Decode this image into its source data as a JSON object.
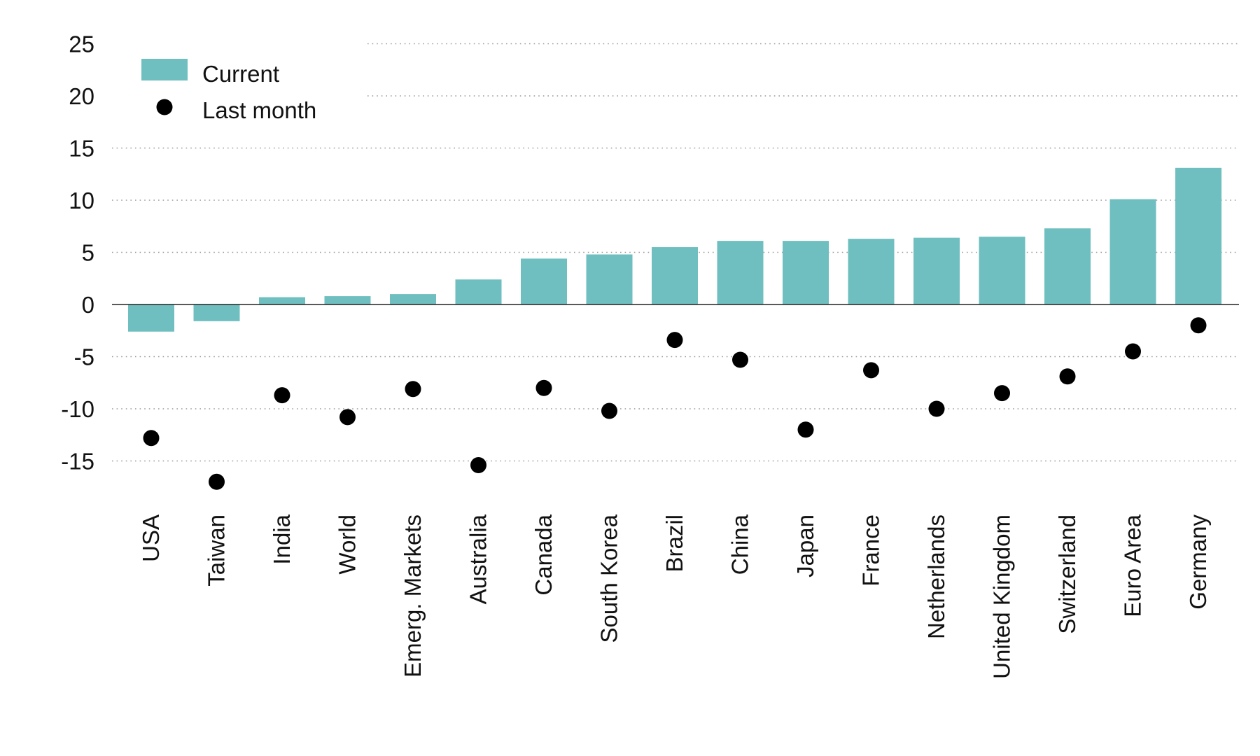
{
  "chart_data": {
    "type": "bar",
    "title": "",
    "xlabel": "",
    "ylabel": "",
    "ylim": [
      -20,
      25
    ],
    "yticks": [
      25,
      20,
      15,
      10,
      5,
      0,
      -5,
      -10,
      -15
    ],
    "ytick_labels": [
      "25",
      "20",
      "15",
      "10",
      "5",
      "0",
      "-5",
      "-10",
      "-15"
    ],
    "grid": true,
    "legend_position": "top-left",
    "categories": [
      "USA",
      "Taiwan",
      "India",
      "World",
      "Emerg. Markets",
      "Australia",
      "Canada",
      "South Korea",
      "Brazil",
      "China",
      "Japan",
      "France",
      "Netherlands",
      "United Kingdom",
      "Switzerland",
      "Euro Area",
      "Germany"
    ],
    "series": [
      {
        "name": "Current",
        "kind": "bar",
        "color": "#6fbfc0",
        "values": [
          -2.6,
          -1.6,
          0.7,
          0.8,
          1.0,
          2.4,
          4.4,
          4.8,
          5.5,
          6.1,
          6.1,
          6.3,
          6.4,
          6.5,
          7.3,
          10.1,
          13.1
        ]
      },
      {
        "name": "Last month",
        "kind": "dot",
        "color": "#000000",
        "values": [
          -12.8,
          -17.0,
          -8.7,
          -10.8,
          -8.1,
          -15.4,
          -8.0,
          -10.2,
          -3.4,
          -5.3,
          -12.0,
          -6.3,
          -10.0,
          -8.5,
          -6.9,
          -4.5,
          -2.0
        ]
      }
    ]
  }
}
